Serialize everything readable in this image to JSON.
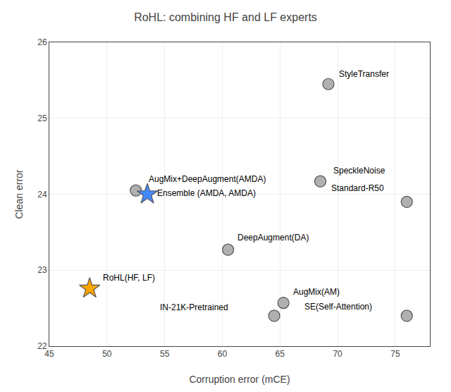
{
  "chart_data": {
    "type": "scatter",
    "title": "RoHL: combining HF and LF experts",
    "x_label": "Corruption error (mCE)",
    "y_label": "Clean error",
    "xlim": [
      45,
      78
    ],
    "ylim": [
      22,
      26
    ],
    "xticks": [
      45,
      50,
      55,
      60,
      65,
      70,
      75
    ],
    "yticks": [
      22,
      23,
      24,
      25,
      26
    ],
    "grid": true,
    "series": [
      {
        "x": [
          52.5,
          69.2,
          68.5,
          76.0,
          60.5,
          65.3,
          64.5,
          76.0
        ],
        "values": [
          24.05,
          25.45,
          24.17,
          23.9,
          23.27,
          22.57,
          22.4,
          22.4
        ],
        "color": "#b0b0b0",
        "marker": "circle"
      },
      {
        "x": [
          48.5,
          53.5
        ],
        "values": [
          22.76,
          24.0
        ],
        "colors": [
          "#FFA500",
          "#4488FF"
        ],
        "marker": "star"
      }
    ],
    "annotations": [
      {
        "text": "AugMix+DeepAugment(AMDA)",
        "x": 53.5,
        "y": 24.12
      },
      {
        "text": "StyleTransfer",
        "x": 70.0,
        "y": 25.5
      },
      {
        "text": "SpeckleNoise",
        "x": 69.5,
        "y": 24.23
      },
      {
        "text": "Standard-R50",
        "x": 69.3,
        "y": 24.0
      },
      {
        "text": "DeepAugment(DA)",
        "x": 61.2,
        "y": 23.35
      },
      {
        "text": "AugMix(AM)",
        "x": 66.0,
        "y": 22.63
      },
      {
        "text": "IN-21K-Pretrained",
        "x": 54.5,
        "y": 22.43
      },
      {
        "text": "SE(Self-Attention)",
        "x": 67.0,
        "y": 22.44
      },
      {
        "text": "RoHL(HF, LF)",
        "x": 49.5,
        "y": 22.82
      },
      {
        "text": "Ensemble (AMDA, AMDA)",
        "x": 54.2,
        "y": 23.93
      }
    ]
  }
}
